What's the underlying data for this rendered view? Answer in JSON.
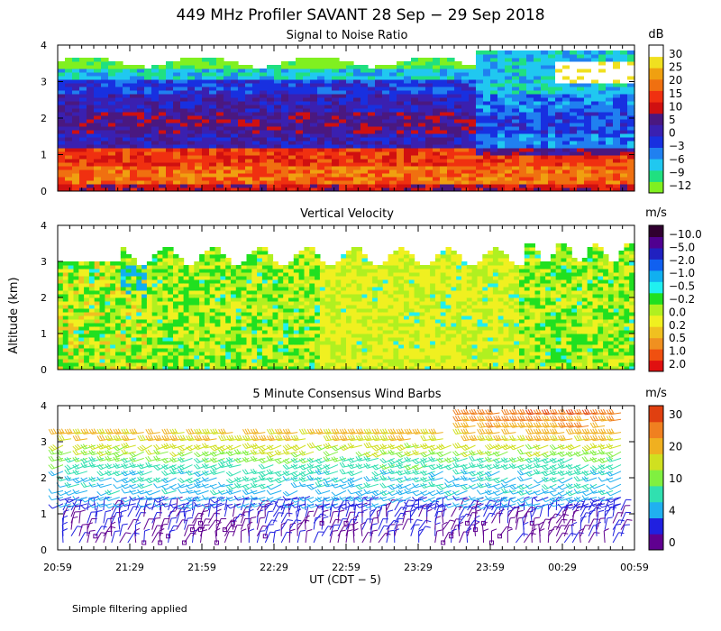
{
  "title": "449 MHz Profiler SAVANT 28 Sep − 29 Sep 2018",
  "ylabel": "Altitude (km)",
  "xlabel": "UT  (CDT − 5)",
  "footnote": "Simple filtering applied",
  "x_ticks": [
    "20:59",
    "21:29",
    "21:59",
    "22:29",
    "22:59",
    "23:29",
    "23:59",
    "00:29",
    "00:59"
  ],
  "y_ticks": [
    "0",
    "1",
    "2",
    "3",
    "4"
  ],
  "colors": {
    "snr": [
      "#80f020",
      "#20e080",
      "#20c8f0",
      "#2080f0",
      "#1830e0",
      "#3a20b0",
      "#4a1880",
      "#d01010",
      "#f03010",
      "#f07010",
      "#f0a010",
      "#f0e020",
      "#ffffff"
    ],
    "vel": [
      "#300030",
      "#500090",
      "#2020c0",
      "#1060f0",
      "#10b0f0",
      "#20f0f0",
      "#20e020",
      "#b0f020",
      "#f0f020",
      "#f0c020",
      "#f09020",
      "#f05010",
      "#e01010"
    ],
    "wind": [
      "#600090",
      "#2020e0",
      "#20b0f0",
      "#30e0b0",
      "#80f040",
      "#d0e020",
      "#f0b020",
      "#f08020",
      "#e04010"
    ]
  },
  "chart_data": [
    {
      "type": "heatmap",
      "title": "Signal to Noise Ratio",
      "units": "dB",
      "colorbar_labels": [
        "30",
        "25",
        "20",
        "15",
        "10",
        "5",
        "0",
        "−3",
        "−6",
        "−9",
        "−12"
      ],
      "ylim": [
        0,
        4
      ],
      "time_range": [
        "20:59",
        "00:59"
      ],
      "altitude_bands": [
        {
          "from": 0.0,
          "to": 0.2,
          "level": 7
        },
        {
          "from": 0.2,
          "to": 0.7,
          "level": 9
        },
        {
          "from": 0.7,
          "to": 1.2,
          "level": 8
        },
        {
          "from": 1.2,
          "to": 1.6,
          "level": 5
        },
        {
          "from": 1.6,
          "to": 2.2,
          "level": 6
        },
        {
          "from": 2.2,
          "to": 2.7,
          "level": 5
        },
        {
          "from": 2.7,
          "to": 3.1,
          "level": 4
        },
        {
          "from": 3.1,
          "to": 3.4,
          "level": 2
        },
        {
          "from": 3.4,
          "to": 3.7,
          "level": 0
        }
      ]
    },
    {
      "type": "heatmap",
      "title": "Vertical Velocity",
      "units": "m/s",
      "colorbar_labels": [
        "2.0",
        "1.0",
        "0.5",
        "0.2",
        "0.0",
        "−0.2",
        "−0.5",
        "−1.0",
        "−2.0",
        "−5.0",
        "−10.0"
      ],
      "ylim": [
        0,
        4
      ],
      "time_range": [
        "20:59",
        "00:59"
      ],
      "altitude_top_km": 3.0,
      "dominant_levels": [
        6,
        7,
        8
      ]
    },
    {
      "type": "scatter",
      "title": "5 Minute Consensus Wind Barbs",
      "units": "m/s",
      "colorbar_labels": [
        "30",
        "20",
        "10",
        "4",
        "0"
      ],
      "ylim": [
        0,
        4
      ],
      "time_range": [
        "20:59",
        "00:59"
      ],
      "speed_profile": [
        {
          "alt": 0.2,
          "speed": 3
        },
        {
          "alt": 1.0,
          "speed": 4
        },
        {
          "alt": 1.5,
          "speed": 9
        },
        {
          "alt": 2.0,
          "speed": 11
        },
        {
          "alt": 2.5,
          "speed": 14
        },
        {
          "alt": 3.0,
          "speed": 21
        },
        {
          "alt": 3.5,
          "speed": 25
        },
        {
          "alt": 3.8,
          "speed": 28
        }
      ]
    }
  ]
}
